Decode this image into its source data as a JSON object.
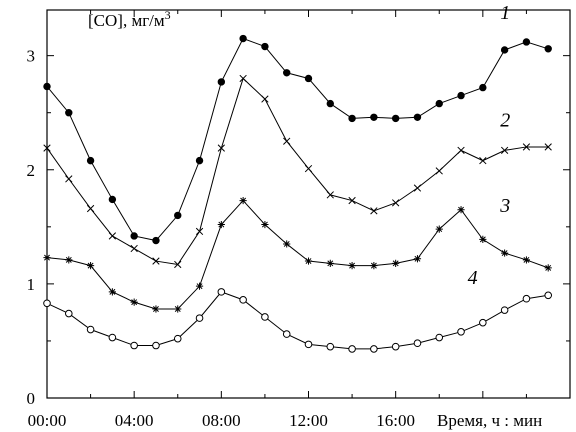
{
  "chart_data": {
    "type": "line",
    "ylabel": "[CO], мг/м",
    "ylabel_superscript": "3",
    "xlabel": "Время, ч : мин",
    "x_ticks": [
      "00:00",
      "04:00",
      "08:00",
      "12:00",
      "16:00"
    ],
    "y_ticks": [
      "0",
      "1",
      "2",
      "3"
    ],
    "xlim_hours": [
      0,
      24
    ],
    "ylim": [
      0,
      3.4
    ],
    "x_hours": [
      0,
      1,
      2,
      3,
      4,
      5,
      6,
      7,
      8,
      9,
      10,
      11,
      12,
      13,
      14,
      15,
      16,
      17,
      18,
      19,
      20,
      21,
      22,
      23
    ],
    "series": [
      {
        "name": "1",
        "marker": "filled-circle",
        "values": [
          2.73,
          2.5,
          2.08,
          1.74,
          1.42,
          1.38,
          1.6,
          2.08,
          2.77,
          3.15,
          3.08,
          2.85,
          2.8,
          2.58,
          2.45,
          2.46,
          2.45,
          2.46,
          2.58,
          2.65,
          2.72,
          3.05,
          3.12,
          3.06
        ]
      },
      {
        "name": "2",
        "marker": "x-cross",
        "values": [
          2.19,
          1.92,
          1.66,
          1.42,
          1.31,
          1.2,
          1.17,
          1.46,
          2.19,
          2.8,
          2.62,
          2.25,
          2.01,
          1.78,
          1.73,
          1.64,
          1.71,
          1.84,
          1.99,
          2.17,
          2.08,
          2.17,
          2.2,
          2.2
        ]
      },
      {
        "name": "3",
        "marker": "asterisk",
        "values": [
          1.23,
          1.21,
          1.16,
          0.93,
          0.84,
          0.78,
          0.78,
          0.98,
          1.52,
          1.73,
          1.52,
          1.35,
          1.2,
          1.18,
          1.16,
          1.16,
          1.18,
          1.22,
          1.48,
          1.65,
          1.39,
          1.27,
          1.21,
          1.14
        ]
      },
      {
        "name": "4",
        "marker": "open-circle",
        "values": [
          0.83,
          0.74,
          0.6,
          0.53,
          0.46,
          0.46,
          0.52,
          0.7,
          0.93,
          0.86,
          0.71,
          0.56,
          0.47,
          0.45,
          0.43,
          0.43,
          0.45,
          0.48,
          0.53,
          0.58,
          0.66,
          0.77,
          0.87,
          0.9
        ]
      }
    ],
    "grid": false,
    "legend": "none"
  }
}
